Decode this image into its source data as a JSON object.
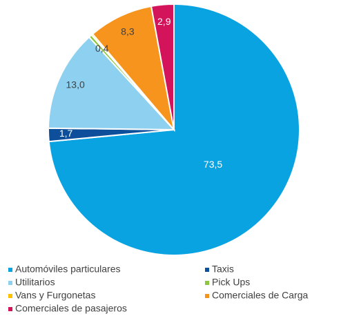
{
  "chart_data": {
    "type": "pie",
    "categories": [
      "Automóviles particulares",
      "Taxis",
      "Utilitarios",
      "Pick Ups",
      "Vans y Furgonetas",
      "Comerciales de Carga",
      "Comerciales de pasajeros"
    ],
    "values": [
      73.5,
      1.7,
      13.0,
      0.4,
      0.2,
      8.3,
      2.9
    ],
    "value_labels": [
      "73,5",
      "1,7",
      "13,0",
      "0,4",
      null,
      "8,3",
      "2,9"
    ],
    "colors": [
      "#0aa3e2",
      "#0d4f9a",
      "#8ed0f0",
      "#8dc63f",
      "#ffc000",
      "#f7941d",
      "#d4145a"
    ],
    "legend": "bottom"
  }
}
